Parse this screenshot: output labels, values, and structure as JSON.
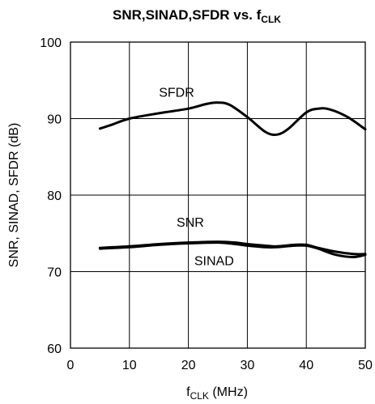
{
  "chart_data": {
    "type": "line",
    "title": {
      "main": "SNR,SINAD,SFDR vs. f",
      "sub": "CLK"
    },
    "xlabel": {
      "main": "f",
      "sub": "CLK",
      "tail": " (MHz)"
    },
    "ylabel": "SNR, SINAD, SFDR (dB)",
    "xlim": [
      0,
      50
    ],
    "ylim": [
      60,
      100
    ],
    "xticks": [
      0,
      10,
      20,
      30,
      40,
      50
    ],
    "yticks": [
      60,
      70,
      80,
      90,
      100
    ],
    "grid": true,
    "series": [
      {
        "name": "SFDR",
        "x": [
          5,
          7,
          10,
          15,
          20,
          23,
          25,
          27,
          30,
          33,
          35,
          37,
          40,
          42,
          44,
          47,
          50
        ],
        "y": [
          88.7,
          89.2,
          90.0,
          90.7,
          91.3,
          91.9,
          92.1,
          91.8,
          90.2,
          88.3,
          87.9,
          88.7,
          90.8,
          91.3,
          91.2,
          90.2,
          88.6
        ]
      },
      {
        "name": "SNR",
        "x": [
          5,
          10,
          15,
          20,
          25,
          28,
          30,
          33,
          35,
          38,
          40,
          42,
          45,
          48,
          50
        ],
        "y": [
          73.1,
          73.3,
          73.6,
          73.8,
          73.9,
          73.8,
          73.6,
          73.4,
          73.3,
          73.5,
          73.5,
          73.1,
          72.6,
          72.3,
          72.3
        ]
      },
      {
        "name": "SINAD",
        "x": [
          5,
          10,
          15,
          20,
          25,
          28,
          30,
          33,
          35,
          38,
          40,
          42,
          45,
          48,
          50
        ],
        "y": [
          73.0,
          73.2,
          73.5,
          73.7,
          73.8,
          73.6,
          73.4,
          73.2,
          73.2,
          73.4,
          73.4,
          73.0,
          72.2,
          71.9,
          72.2
        ]
      }
    ]
  }
}
